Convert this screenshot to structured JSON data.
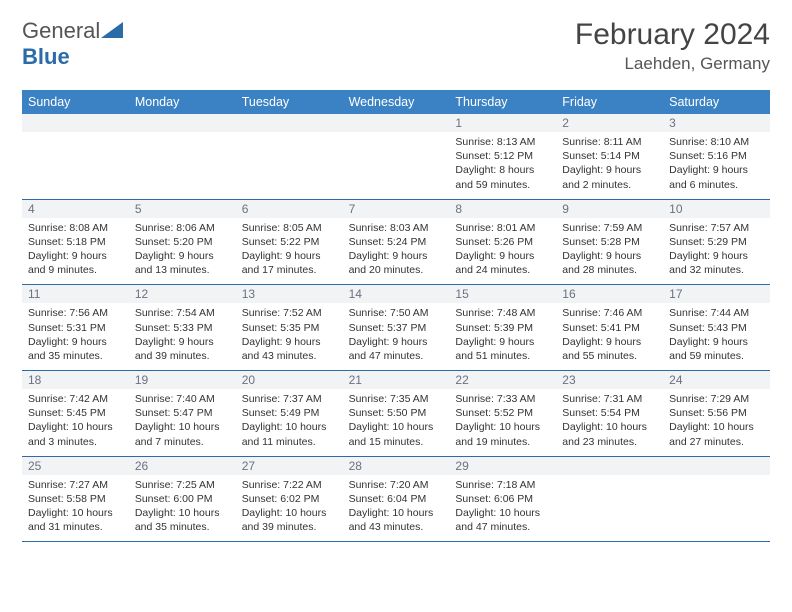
{
  "logo": {
    "part1": "General",
    "part2": "Blue"
  },
  "month_title": "February 2024",
  "location": "Laehden, Germany",
  "colors": {
    "header_bg": "#3b82c4",
    "header_fg": "#ffffff",
    "rule": "#2a6ca8",
    "date_bg": "#f1f3f5",
    "date_fg": "#6b7280",
    "body_fg": "#333333"
  },
  "day_names": [
    "Sunday",
    "Monday",
    "Tuesday",
    "Wednesday",
    "Thursday",
    "Friday",
    "Saturday"
  ],
  "weeks": [
    [
      null,
      null,
      null,
      null,
      {
        "d": "1",
        "sr": "8:13 AM",
        "ss": "5:12 PM",
        "dl": "8 hours and 59 minutes."
      },
      {
        "d": "2",
        "sr": "8:11 AM",
        "ss": "5:14 PM",
        "dl": "9 hours and 2 minutes."
      },
      {
        "d": "3",
        "sr": "8:10 AM",
        "ss": "5:16 PM",
        "dl": "9 hours and 6 minutes."
      }
    ],
    [
      {
        "d": "4",
        "sr": "8:08 AM",
        "ss": "5:18 PM",
        "dl": "9 hours and 9 minutes."
      },
      {
        "d": "5",
        "sr": "8:06 AM",
        "ss": "5:20 PM",
        "dl": "9 hours and 13 minutes."
      },
      {
        "d": "6",
        "sr": "8:05 AM",
        "ss": "5:22 PM",
        "dl": "9 hours and 17 minutes."
      },
      {
        "d": "7",
        "sr": "8:03 AM",
        "ss": "5:24 PM",
        "dl": "9 hours and 20 minutes."
      },
      {
        "d": "8",
        "sr": "8:01 AM",
        "ss": "5:26 PM",
        "dl": "9 hours and 24 minutes."
      },
      {
        "d": "9",
        "sr": "7:59 AM",
        "ss": "5:28 PM",
        "dl": "9 hours and 28 minutes."
      },
      {
        "d": "10",
        "sr": "7:57 AM",
        "ss": "5:29 PM",
        "dl": "9 hours and 32 minutes."
      }
    ],
    [
      {
        "d": "11",
        "sr": "7:56 AM",
        "ss": "5:31 PM",
        "dl": "9 hours and 35 minutes."
      },
      {
        "d": "12",
        "sr": "7:54 AM",
        "ss": "5:33 PM",
        "dl": "9 hours and 39 minutes."
      },
      {
        "d": "13",
        "sr": "7:52 AM",
        "ss": "5:35 PM",
        "dl": "9 hours and 43 minutes."
      },
      {
        "d": "14",
        "sr": "7:50 AM",
        "ss": "5:37 PM",
        "dl": "9 hours and 47 minutes."
      },
      {
        "d": "15",
        "sr": "7:48 AM",
        "ss": "5:39 PM",
        "dl": "9 hours and 51 minutes."
      },
      {
        "d": "16",
        "sr": "7:46 AM",
        "ss": "5:41 PM",
        "dl": "9 hours and 55 minutes."
      },
      {
        "d": "17",
        "sr": "7:44 AM",
        "ss": "5:43 PM",
        "dl": "9 hours and 59 minutes."
      }
    ],
    [
      {
        "d": "18",
        "sr": "7:42 AM",
        "ss": "5:45 PM",
        "dl": "10 hours and 3 minutes."
      },
      {
        "d": "19",
        "sr": "7:40 AM",
        "ss": "5:47 PM",
        "dl": "10 hours and 7 minutes."
      },
      {
        "d": "20",
        "sr": "7:37 AM",
        "ss": "5:49 PM",
        "dl": "10 hours and 11 minutes."
      },
      {
        "d": "21",
        "sr": "7:35 AM",
        "ss": "5:50 PM",
        "dl": "10 hours and 15 minutes."
      },
      {
        "d": "22",
        "sr": "7:33 AM",
        "ss": "5:52 PM",
        "dl": "10 hours and 19 minutes."
      },
      {
        "d": "23",
        "sr": "7:31 AM",
        "ss": "5:54 PM",
        "dl": "10 hours and 23 minutes."
      },
      {
        "d": "24",
        "sr": "7:29 AM",
        "ss": "5:56 PM",
        "dl": "10 hours and 27 minutes."
      }
    ],
    [
      {
        "d": "25",
        "sr": "7:27 AM",
        "ss": "5:58 PM",
        "dl": "10 hours and 31 minutes."
      },
      {
        "d": "26",
        "sr": "7:25 AM",
        "ss": "6:00 PM",
        "dl": "10 hours and 35 minutes."
      },
      {
        "d": "27",
        "sr": "7:22 AM",
        "ss": "6:02 PM",
        "dl": "10 hours and 39 minutes."
      },
      {
        "d": "28",
        "sr": "7:20 AM",
        "ss": "6:04 PM",
        "dl": "10 hours and 43 minutes."
      },
      {
        "d": "29",
        "sr": "7:18 AM",
        "ss": "6:06 PM",
        "dl": "10 hours and 47 minutes."
      },
      null,
      null
    ]
  ],
  "labels": {
    "sunrise": "Sunrise: ",
    "sunset": "Sunset: ",
    "daylight": "Daylight: "
  }
}
